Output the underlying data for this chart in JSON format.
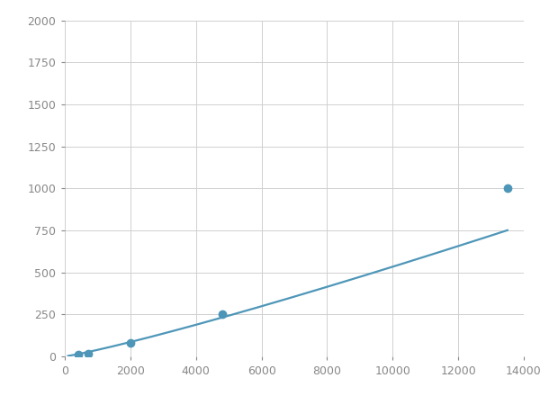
{
  "x": [
    100,
    400,
    700,
    2000,
    4800,
    13500
  ],
  "y": [
    5,
    10,
    15,
    80,
    250,
    1000
  ],
  "line_color": "#4e96b8",
  "marker_color": "#4e96b8",
  "marker_size": 6,
  "xlim": [
    0,
    14000
  ],
  "ylim": [
    0,
    2000
  ],
  "xticks": [
    0,
    2000,
    4000,
    6000,
    8000,
    10000,
    12000,
    14000
  ],
  "yticks": [
    0,
    250,
    500,
    750,
    1000,
    1250,
    1500,
    1750,
    2000
  ],
  "grid_color": "#d0d0d0",
  "bg_color": "#ffffff",
  "fig_bg_color": "#ffffff",
  "linewidth": 1.6,
  "tick_label_color": "#888888",
  "tick_fontsize": 9
}
